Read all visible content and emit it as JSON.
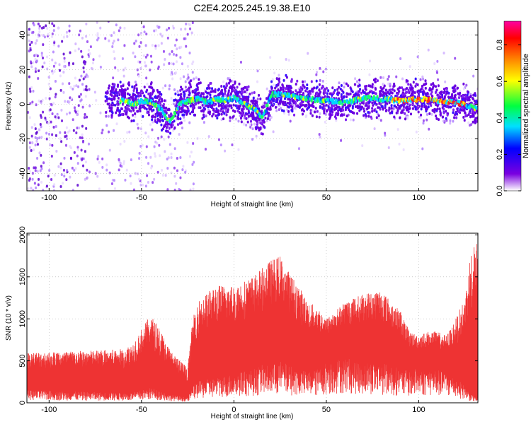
{
  "title": "C2E4.2025.245.19.38.E10",
  "chart_data": [
    {
      "type": "heatmap",
      "name": "spectrogram",
      "xlabel": "Height of straight line (km)",
      "ylabel": "Frequency (Hz)",
      "xlim": [
        -112,
        132
      ],
      "ylim": [
        -50,
        48
      ],
      "xticks": [
        -100,
        -50,
        0,
        50,
        100
      ],
      "yticks": [
        -40,
        -20,
        0,
        20,
        40
      ],
      "colorbar": {
        "label": "Normalized spectral amplitude",
        "range": [
          0,
          0.93
        ],
        "ticks": [
          0.0,
          0.2,
          0.4,
          0.6,
          0.8
        ],
        "colors": [
          "#ffffff",
          "#7a00e0",
          "#0000ff",
          "#00e0ff",
          "#00ff40",
          "#ffff00",
          "#ff8000",
          "#ff0000",
          "#ff00a0"
        ]
      },
      "ridge": {
        "x": [
          -70,
          -60,
          -55,
          -50,
          -45,
          -40,
          -35,
          -30,
          -25,
          -20,
          -15,
          -10,
          -5,
          0,
          5,
          10,
          15,
          20,
          30,
          40,
          50,
          60,
          70,
          80,
          90,
          100,
          110,
          120,
          130
        ],
        "freq": [
          2,
          2,
          0,
          2,
          1,
          -3,
          -10,
          0,
          2,
          3,
          1,
          3,
          2,
          4,
          0,
          -2,
          -8,
          6,
          5,
          3,
          2,
          1,
          4,
          3,
          2,
          3,
          2,
          1,
          -2
        ]
      }
    },
    {
      "type": "area",
      "name": "snr",
      "xlabel": "Height of straight line (km)",
      "ylabel": "SNR (10 * v/v)",
      "xlim": [
        -112,
        132
      ],
      "ylim": [
        0,
        2020
      ],
      "xticks": [
        -100,
        -50,
        0,
        50,
        100
      ],
      "yticks": [
        0,
        500,
        1000,
        1500,
        2000
      ],
      "color": "#ee3333",
      "envelope": {
        "x": [
          -112,
          -80,
          -60,
          -55,
          -50,
          -45,
          -40,
          -35,
          -30,
          -25,
          -22,
          -20,
          -10,
          0,
          10,
          15,
          20,
          25,
          30,
          35,
          40,
          45,
          50,
          60,
          70,
          80,
          85,
          90,
          95,
          100,
          105,
          110,
          115,
          120,
          125,
          128,
          132
        ],
        "high": [
          600,
          620,
          640,
          700,
          880,
          1050,
          880,
          650,
          520,
          420,
          1050,
          1200,
          1400,
          1400,
          1500,
          1600,
          1700,
          1750,
          1550,
          1400,
          1200,
          1150,
          1000,
          1200,
          1300,
          1350,
          1200,
          1100,
          850,
          800,
          850,
          850,
          800,
          1000,
          1250,
          1800,
          2020
        ],
        "low": [
          150,
          130,
          120,
          120,
          150,
          180,
          150,
          100,
          80,
          60,
          200,
          250,
          300,
          350,
          400,
          450,
          450,
          500,
          450,
          400,
          380,
          400,
          500,
          550,
          500,
          480,
          450,
          400,
          380,
          420,
          420,
          400,
          350,
          300,
          200,
          100,
          50
        ]
      }
    }
  ]
}
